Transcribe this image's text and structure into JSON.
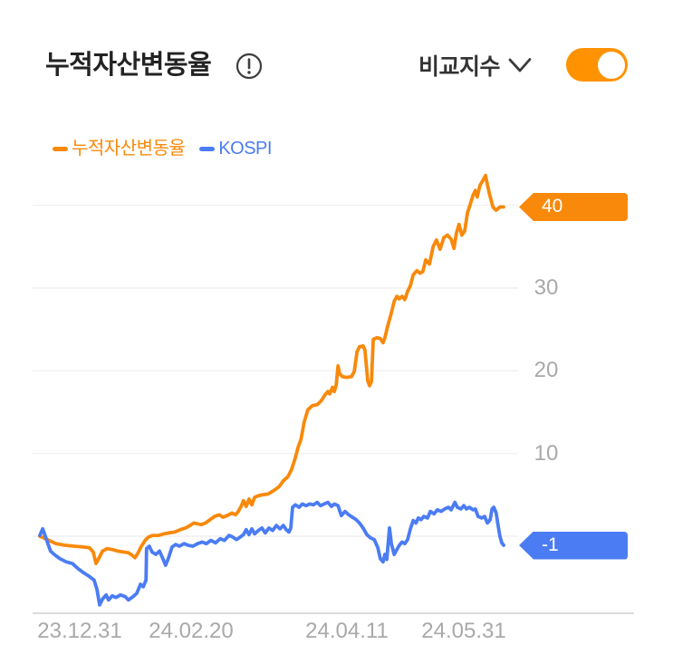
{
  "header": {
    "title": "누적자산변동율",
    "info_icon": "info-circle-exclamation",
    "compare_label": "비교지수",
    "chevron_icon": "chevron-down",
    "toggle": {
      "state": "on",
      "color": "#FF9200"
    }
  },
  "legend": [
    {
      "label": "누적자산변동율",
      "color": "#F8890B"
    },
    {
      "label": "KOSPI",
      "color": "#4B7CF3"
    }
  ],
  "colors": {
    "accent_orange": "#F8890B",
    "toggle_orange": "#FF9200",
    "kospi_blue": "#4B7CF3",
    "axis_gray": "#A9A9A9",
    "gridline": "#F1F1F1",
    "baseline": "#DCDCDC"
  },
  "chart_data": {
    "type": "line",
    "title": "누적자산변동율",
    "ylabel": "",
    "xlabel": "",
    "ylim": [
      -9.5,
      44.5
    ],
    "grid": true,
    "legend_position": "top-left",
    "x_tick_labels": [
      "23.12.31",
      "24.02.20",
      "24.04.11",
      "24.05.31"
    ],
    "y_axis_labels": [
      "30",
      "20",
      "10"
    ],
    "grid_values": [
      40,
      30,
      20,
      10,
      0
    ],
    "end_badges": [
      {
        "series": "누적자산변동율",
        "label": "40",
        "value": 40,
        "color": "#F8890B",
        "text_color": "#FFFFFF"
      },
      {
        "series": "KOSPI",
        "label": "-1",
        "value": -1,
        "color": "#4B7CF3",
        "text_color": "#FFFFFF"
      }
    ],
    "series": [
      {
        "name": "누적자산변동율",
        "color": "#F8890B",
        "unit": "%",
        "points": [
          [
            0,
            0
          ],
          [
            0.008,
            -0.2
          ],
          [
            0.02,
            -0.5
          ],
          [
            0.035,
            -0.9
          ],
          [
            0.055,
            -1.1
          ],
          [
            0.074,
            -1.2
          ],
          [
            0.094,
            -1.3
          ],
          [
            0.107,
            -1.4
          ],
          [
            0.115,
            -1.9
          ],
          [
            0.121,
            -3.3
          ],
          [
            0.127,
            -2.7
          ],
          [
            0.135,
            -1.8
          ],
          [
            0.145,
            -1.5
          ],
          [
            0.156,
            -1.6
          ],
          [
            0.168,
            -1.8
          ],
          [
            0.18,
            -1.9
          ],
          [
            0.191,
            -2
          ],
          [
            0.199,
            -2.3
          ],
          [
            0.205,
            -2.6
          ],
          [
            0.211,
            -2.1
          ],
          [
            0.219,
            -1.2
          ],
          [
            0.227,
            -0.5
          ],
          [
            0.234,
            -0.1
          ],
          [
            0.244,
            0.1
          ],
          [
            0.256,
            0.1
          ],
          [
            0.268,
            0.3
          ],
          [
            0.279,
            0.4
          ],
          [
            0.291,
            0.5
          ],
          [
            0.303,
            0.8
          ],
          [
            0.314,
            1
          ],
          [
            0.324,
            1.3
          ],
          [
            0.332,
            1.6
          ],
          [
            0.34,
            1.5
          ],
          [
            0.348,
            1.4
          ],
          [
            0.357,
            1.6
          ],
          [
            0.367,
            2
          ],
          [
            0.377,
            2.4
          ],
          [
            0.387,
            2.6
          ],
          [
            0.395,
            2.3
          ],
          [
            0.404,
            2.5
          ],
          [
            0.414,
            2.8
          ],
          [
            0.422,
            2.6
          ],
          [
            0.428,
            3
          ],
          [
            0.434,
            3.6
          ],
          [
            0.439,
            4.3
          ],
          [
            0.445,
            3.6
          ],
          [
            0.451,
            4.5
          ],
          [
            0.457,
            3.8
          ],
          [
            0.463,
            4.7
          ],
          [
            0.471,
            4.9
          ],
          [
            0.48,
            5
          ],
          [
            0.492,
            5.1
          ],
          [
            0.504,
            5.5
          ],
          [
            0.516,
            6
          ],
          [
            0.525,
            6.7
          ],
          [
            0.535,
            7.2
          ],
          [
            0.543,
            8.1
          ],
          [
            0.551,
            9.5
          ],
          [
            0.557,
            10.8
          ],
          [
            0.563,
            11.7
          ],
          [
            0.57,
            13.8
          ],
          [
            0.578,
            15.3
          ],
          [
            0.588,
            15.8
          ],
          [
            0.598,
            15.9
          ],
          [
            0.607,
            16.4
          ],
          [
            0.615,
            17.1
          ],
          [
            0.621,
            17.5
          ],
          [
            0.625,
            17.2
          ],
          [
            0.631,
            18
          ],
          [
            0.635,
            17.5
          ],
          [
            0.639,
            18.3
          ],
          [
            0.643,
            20.6
          ],
          [
            0.646,
            19.7
          ],
          [
            0.652,
            19.3
          ],
          [
            0.662,
            19.2
          ],
          [
            0.672,
            19.3
          ],
          [
            0.678,
            19.9
          ],
          [
            0.684,
            22.3
          ],
          [
            0.689,
            22.9
          ],
          [
            0.697,
            23
          ],
          [
            0.701,
            22.5
          ],
          [
            0.707,
            18.8
          ],
          [
            0.711,
            18.2
          ],
          [
            0.715,
            18.7
          ],
          [
            0.719,
            23.8
          ],
          [
            0.727,
            24
          ],
          [
            0.734,
            23.9
          ],
          [
            0.74,
            23.4
          ],
          [
            0.744,
            24
          ],
          [
            0.75,
            25.4
          ],
          [
            0.758,
            27
          ],
          [
            0.764,
            28.4
          ],
          [
            0.77,
            29
          ],
          [
            0.775,
            28.7
          ],
          [
            0.781,
            29
          ],
          [
            0.787,
            28.6
          ],
          [
            0.793,
            29.6
          ],
          [
            0.799,
            30.3
          ],
          [
            0.805,
            31.6
          ],
          [
            0.813,
            32.1
          ],
          [
            0.82,
            31.8
          ],
          [
            0.826,
            32
          ],
          [
            0.832,
            33.4
          ],
          [
            0.84,
            32.9
          ],
          [
            0.848,
            35
          ],
          [
            0.855,
            35.8
          ],
          [
            0.863,
            34.7
          ],
          [
            0.871,
            36.1
          ],
          [
            0.879,
            36.4
          ],
          [
            0.887,
            35.9
          ],
          [
            0.893,
            34.8
          ],
          [
            0.898,
            36.6
          ],
          [
            0.904,
            37.7
          ],
          [
            0.91,
            36.4
          ],
          [
            0.916,
            36.9
          ],
          [
            0.922,
            39.1
          ],
          [
            0.928,
            40.1
          ],
          [
            0.934,
            41.2
          ],
          [
            0.939,
            41.8
          ],
          [
            0.943,
            41
          ],
          [
            0.949,
            42.4
          ],
          [
            0.955,
            43
          ],
          [
            0.961,
            43.6
          ],
          [
            0.969,
            41.5
          ],
          [
            0.977,
            39.8
          ],
          [
            0.984,
            39.4
          ],
          [
            0.992,
            39.8
          ],
          [
            1,
            39.8
          ]
        ]
      },
      {
        "name": "KOSPI",
        "color": "#4B7CF3",
        "unit": "%",
        "points": [
          [
            0,
            0.1
          ],
          [
            0.006,
            0.9
          ],
          [
            0.012,
            0
          ],
          [
            0.018,
            -1
          ],
          [
            0.023,
            -1.8
          ],
          [
            0.031,
            -2.2
          ],
          [
            0.043,
            -2.7
          ],
          [
            0.057,
            -3.1
          ],
          [
            0.07,
            -3.3
          ],
          [
            0.082,
            -3.9
          ],
          [
            0.094,
            -4.4
          ],
          [
            0.105,
            -4.8
          ],
          [
            0.117,
            -5.3
          ],
          [
            0.123,
            -6.4
          ],
          [
            0.129,
            -8.3
          ],
          [
            0.135,
            -7.6
          ],
          [
            0.143,
            -7.1
          ],
          [
            0.148,
            -7.7
          ],
          [
            0.156,
            -7.2
          ],
          [
            0.164,
            -7.4
          ],
          [
            0.174,
            -7.1
          ],
          [
            0.184,
            -7.3
          ],
          [
            0.191,
            -7.7
          ],
          [
            0.201,
            -7.3
          ],
          [
            0.209,
            -6.9
          ],
          [
            0.217,
            -5.8
          ],
          [
            0.223,
            -6.1
          ],
          [
            0.229,
            -5.3
          ],
          [
            0.23,
            -1.5
          ],
          [
            0.236,
            -1.2
          ],
          [
            0.242,
            -1.9
          ],
          [
            0.25,
            -2.2
          ],
          [
            0.258,
            -1.8
          ],
          [
            0.266,
            -2.8
          ],
          [
            0.271,
            -3.5
          ],
          [
            0.277,
            -2.7
          ],
          [
            0.285,
            -1.3
          ],
          [
            0.293,
            -1
          ],
          [
            0.301,
            -1.2
          ],
          [
            0.311,
            -0.9
          ],
          [
            0.32,
            -1.1
          ],
          [
            0.33,
            -1.2
          ],
          [
            0.34,
            -0.9
          ],
          [
            0.35,
            -0.7
          ],
          [
            0.359,
            -0.9
          ],
          [
            0.369,
            -0.5
          ],
          [
            0.379,
            -0.8
          ],
          [
            0.389,
            -0.3
          ],
          [
            0.398,
            -0.5
          ],
          [
            0.408,
            0.1
          ],
          [
            0.416,
            -0.1
          ],
          [
            0.424,
            -0.4
          ],
          [
            0.432,
            -0.1
          ],
          [
            0.439,
            0.2
          ],
          [
            0.445,
            0.8
          ],
          [
            0.451,
            0.2
          ],
          [
            0.457,
            0.9
          ],
          [
            0.463,
            0.3
          ],
          [
            0.471,
            0.7
          ],
          [
            0.479,
            1
          ],
          [
            0.486,
            0.4
          ],
          [
            0.494,
            1
          ],
          [
            0.502,
            0.7
          ],
          [
            0.51,
            1.3
          ],
          [
            0.518,
            0.9
          ],
          [
            0.525,
            1.3
          ],
          [
            0.531,
            0.8
          ],
          [
            0.537,
            0.5
          ],
          [
            0.541,
            1
          ],
          [
            0.545,
            3.5
          ],
          [
            0.551,
            3.8
          ],
          [
            0.559,
            3.5
          ],
          [
            0.566,
            3.9
          ],
          [
            0.574,
            3.7
          ],
          [
            0.582,
            3.9
          ],
          [
            0.59,
            3.8
          ],
          [
            0.598,
            4.1
          ],
          [
            0.605,
            3.7
          ],
          [
            0.613,
            3.9
          ],
          [
            0.621,
            4.1
          ],
          [
            0.629,
            3.6
          ],
          [
            0.635,
            3.9
          ],
          [
            0.643,
            3.7
          ],
          [
            0.65,
            2.5
          ],
          [
            0.658,
            3
          ],
          [
            0.666,
            2.6
          ],
          [
            0.674,
            2.3
          ],
          [
            0.682,
            2
          ],
          [
            0.689,
            1.6
          ],
          [
            0.697,
            1
          ],
          [
            0.705,
            0.2
          ],
          [
            0.713,
            -0.2
          ],
          [
            0.721,
            -0.4
          ],
          [
            0.729,
            -1.4
          ],
          [
            0.734,
            -2.7
          ],
          [
            0.74,
            -3.1
          ],
          [
            0.744,
            -2.2
          ],
          [
            0.748,
            -2.8
          ],
          [
            0.754,
            1
          ],
          [
            0.758,
            -0.9
          ],
          [
            0.764,
            -2.2
          ],
          [
            0.77,
            -1.6
          ],
          [
            0.775,
            -1.1
          ],
          [
            0.781,
            -0.7
          ],
          [
            0.787,
            -0.9
          ],
          [
            0.793,
            -0.4
          ],
          [
            0.799,
            0.9
          ],
          [
            0.805,
            1.9
          ],
          [
            0.811,
            1.6
          ],
          [
            0.816,
            2.2
          ],
          [
            0.822,
            2
          ],
          [
            0.828,
            2.4
          ],
          [
            0.836,
            2.2
          ],
          [
            0.842,
            3
          ],
          [
            0.85,
            2.7
          ],
          [
            0.857,
            3.2
          ],
          [
            0.865,
            3
          ],
          [
            0.873,
            3.3
          ],
          [
            0.881,
            3.5
          ],
          [
            0.887,
            3.2
          ],
          [
            0.895,
            4.1
          ],
          [
            0.9,
            3.5
          ],
          [
            0.908,
            3.3
          ],
          [
            0.914,
            3.7
          ],
          [
            0.92,
            3.3
          ],
          [
            0.926,
            3.5
          ],
          [
            0.934,
            3.2
          ],
          [
            0.939,
            3.3
          ],
          [
            0.945,
            2.4
          ],
          [
            0.953,
            2.2
          ],
          [
            0.959,
            2.4
          ],
          [
            0.965,
            1.6
          ],
          [
            0.971,
            2
          ],
          [
            0.975,
            3.3
          ],
          [
            0.979,
            3.5
          ],
          [
            0.984,
            2.8
          ],
          [
            0.988,
            1.3
          ],
          [
            0.992,
            0
          ],
          [
            0.996,
            -0.8
          ],
          [
            1,
            -1.1
          ]
        ]
      }
    ]
  }
}
